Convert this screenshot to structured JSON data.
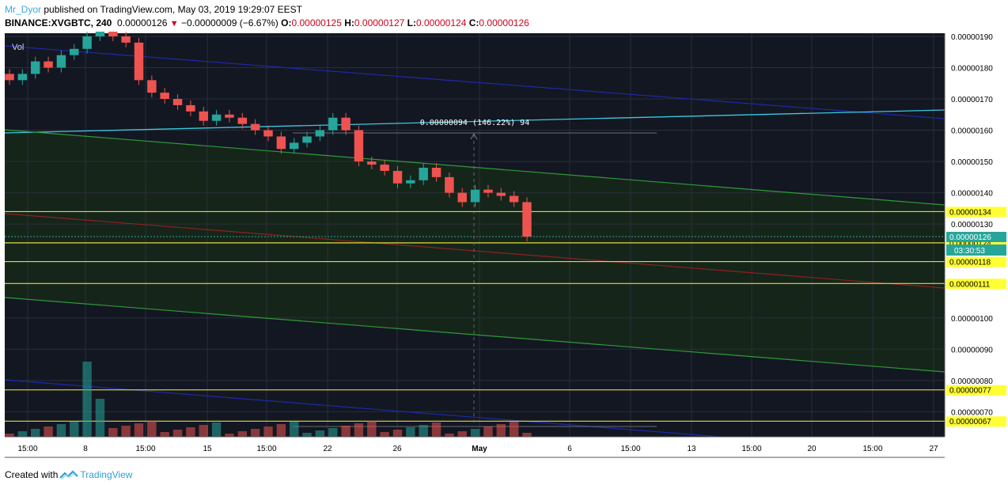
{
  "header": {
    "user": "Mr_Dyor",
    "published": "published on TradingView.com, May 03, 2019 19:29:07 EEST",
    "symbol": "BINANCE:XVGBTC, 240",
    "last": "0.00000126",
    "change": "−0.00000009 (−6.67%)",
    "o_label": "O:",
    "o_value": "0.00000125",
    "h_label": "H:",
    "h_value": "0.00000127",
    "l_label": "L:",
    "l_value": "0.00000124",
    "c_label": "C:",
    "c_value": "0.00000126"
  },
  "footer": {
    "created_with": "Created with",
    "brand": "TradingView"
  },
  "chart_data": {
    "type": "candlestick",
    "symbol": "BINANCE:XVGBTC",
    "interval": "240",
    "pane_label": "Vol",
    "price_range": [
      6.2e-07,
      1.91e-06
    ],
    "y_ticks": [
      "0.00000190",
      "0.00000180",
      "0.00000170",
      "0.00000160",
      "0.00000150",
      "0.00000140",
      "0.00000130",
      "0.00000100",
      "0.00000090",
      "0.00000080",
      "0.00000070"
    ],
    "x_ticks": [
      "15:00",
      "8",
      "15:00",
      "15",
      "15:00",
      "22",
      "26",
      "May",
      "6",
      "15:00",
      "13",
      "15:00",
      "20",
      "15:00",
      "27"
    ],
    "horizontal_levels": [
      "0.00000134",
      "0.00000124",
      "0.00000118",
      "0.00000111",
      "0.00000077",
      "0.00000067"
    ],
    "last_price_label": "0.00000126",
    "countdown": "03:30:53",
    "measure_label": "0.00000094 (146.22%) 94",
    "grid": true,
    "colors": {
      "up": "#26a69a",
      "down": "#ef5350",
      "background": "#131722",
      "channel_fill": "#16261a",
      "level": "#f5f542",
      "label": "#ffff33",
      "price_tag": "#26a69a"
    },
    "series": [
      {
        "name": "XVGBTC",
        "close": [
          1.76e-06,
          1.78e-06,
          1.82e-06,
          1.8e-06,
          1.84e-06,
          1.86e-06,
          1.9e-06,
          1.92e-06,
          1.9e-06,
          1.88e-06,
          1.76e-06,
          1.72e-06,
          1.7e-06,
          1.68e-06,
          1.66e-06,
          1.63e-06,
          1.65e-06,
          1.64e-06,
          1.62e-06,
          1.6e-06,
          1.58e-06,
          1.54e-06,
          1.56e-06,
          1.58e-06,
          1.6e-06,
          1.64e-06,
          1.6e-06,
          1.5e-06,
          1.49e-06,
          1.47e-06,
          1.43e-06,
          1.44e-06,
          1.48e-06,
          1.45e-06,
          1.4e-06,
          1.37e-06,
          1.41e-06,
          1.4e-06,
          1.39e-06,
          1.37e-06,
          1.26e-06
        ]
      }
    ]
  }
}
